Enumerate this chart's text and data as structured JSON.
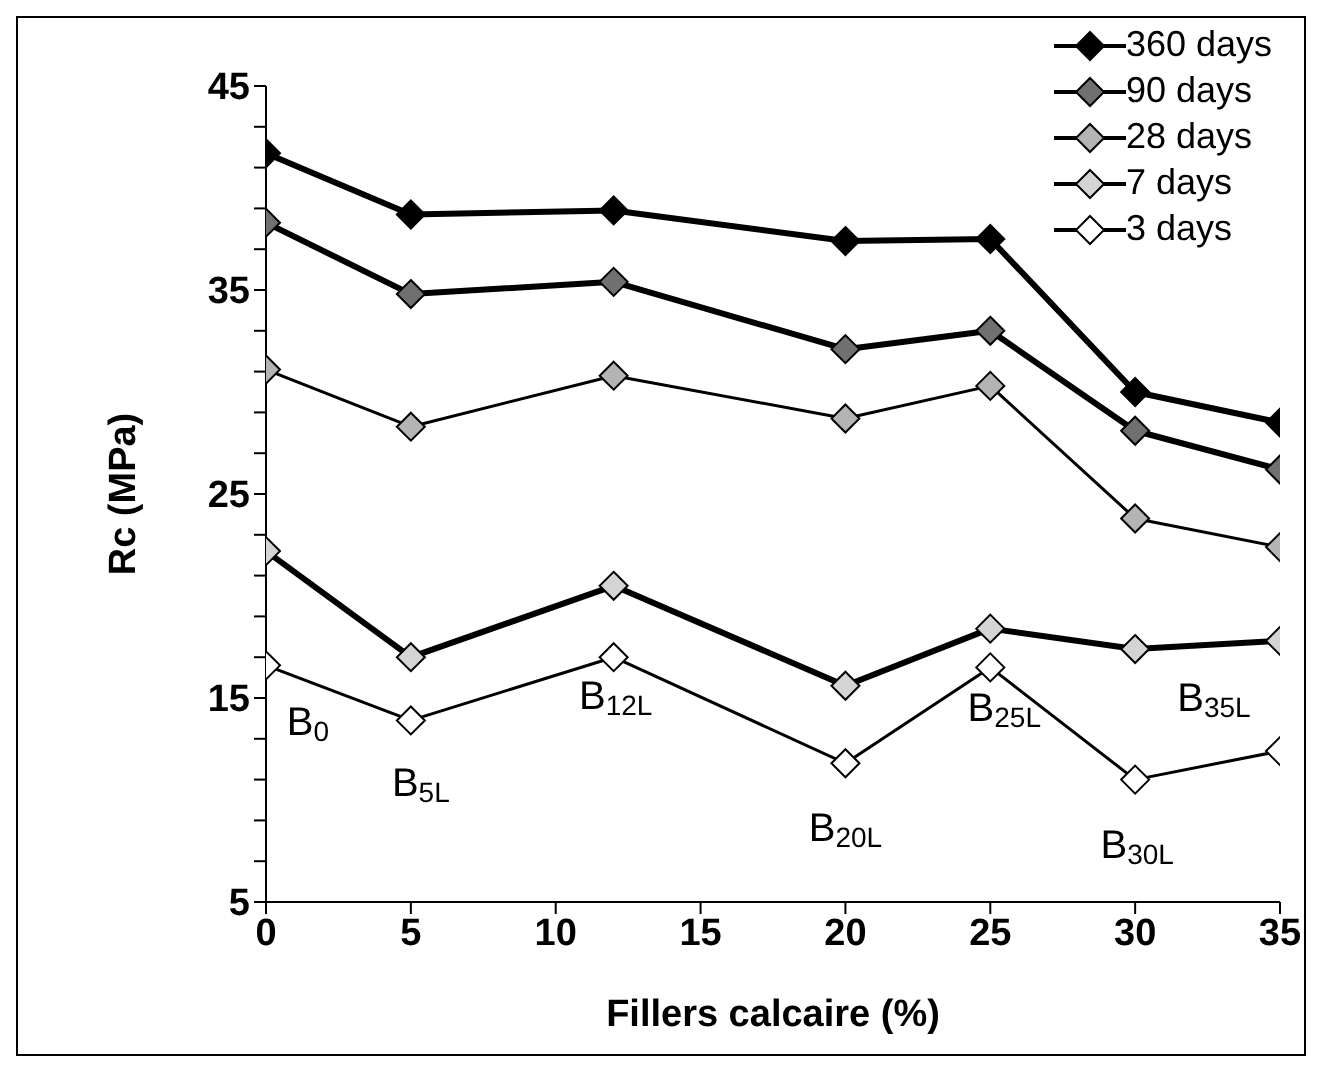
{
  "chart_data": {
    "type": "line",
    "xlabel": "Fillers calcaire (%)",
    "ylabel": "Rc  (MPa)",
    "x": [
      0,
      5,
      12,
      20,
      25,
      30,
      35
    ],
    "series": [
      {
        "name": "360 days",
        "color": "#000000",
        "values": [
          41.7,
          38.7,
          38.9,
          37.4,
          37.5,
          30.0,
          28.5
        ]
      },
      {
        "name": "90 days",
        "color": "#707070",
        "values": [
          38.3,
          34.8,
          35.4,
          32.1,
          33.0,
          28.1,
          26.2
        ]
      },
      {
        "name": "28 days",
        "color": "#b4b4b4",
        "values": [
          31.1,
          28.3,
          30.8,
          28.7,
          30.3,
          23.8,
          22.4
        ]
      },
      {
        "name": "7 days",
        "color": "#d4d4d4",
        "values": [
          22.2,
          17.0,
          20.5,
          15.6,
          18.4,
          17.4,
          17.8
        ]
      },
      {
        "name": "3 days",
        "color": "#ffffff",
        "values": [
          16.6,
          13.9,
          17.0,
          11.8,
          16.5,
          11.0,
          12.4
        ]
      }
    ],
    "xlim": [
      0,
      35
    ],
    "xticks": [
      0,
      5,
      10,
      15,
      20,
      25,
      30,
      35
    ],
    "ylim": [
      5,
      45
    ],
    "yticks": [
      5,
      {
        "value": 7,
        "label": null
      },
      {
        "value": 9,
        "label": null
      },
      {
        "value": 11,
        "label": null
      },
      {
        "value": 13,
        "label": null
      },
      15,
      {
        "value": 17,
        "label": null
      },
      {
        "value": 19,
        "label": null
      },
      {
        "value": 21,
        "label": null
      },
      {
        "value": 23,
        "label": null
      },
      25,
      {
        "value": 27,
        "label": null
      },
      {
        "value": 29,
        "label": null
      },
      {
        "value": 31,
        "label": null
      },
      {
        "value": 33,
        "label": null
      },
      35,
      {
        "value": 37,
        "label": null
      },
      {
        "value": 39,
        "label": null
      },
      {
        "value": 41,
        "label": null
      },
      {
        "value": 43,
        "label": null
      },
      45
    ],
    "annotations": [
      {
        "text": "B$_{0}$",
        "x": 0,
        "y": 16.6
      },
      {
        "text": "B$_{5L}$",
        "x": 5,
        "y": 13.9
      },
      {
        "text": "B$_{12L}$",
        "x": 12,
        "y": 17.0
      },
      {
        "text": "B$_{20L}$",
        "x": 20,
        "y": 11.8
      },
      {
        "text": "B$_{25L}$",
        "x": 25,
        "y": 16.5
      },
      {
        "text": "B$_{30L}$",
        "x": 30,
        "y": 11.0
      },
      {
        "text": "B$_{35L}$",
        "x": 35,
        "y": 12.4
      }
    ],
    "legend": "top right",
    "marker": "diamond",
    "grid": false
  }
}
